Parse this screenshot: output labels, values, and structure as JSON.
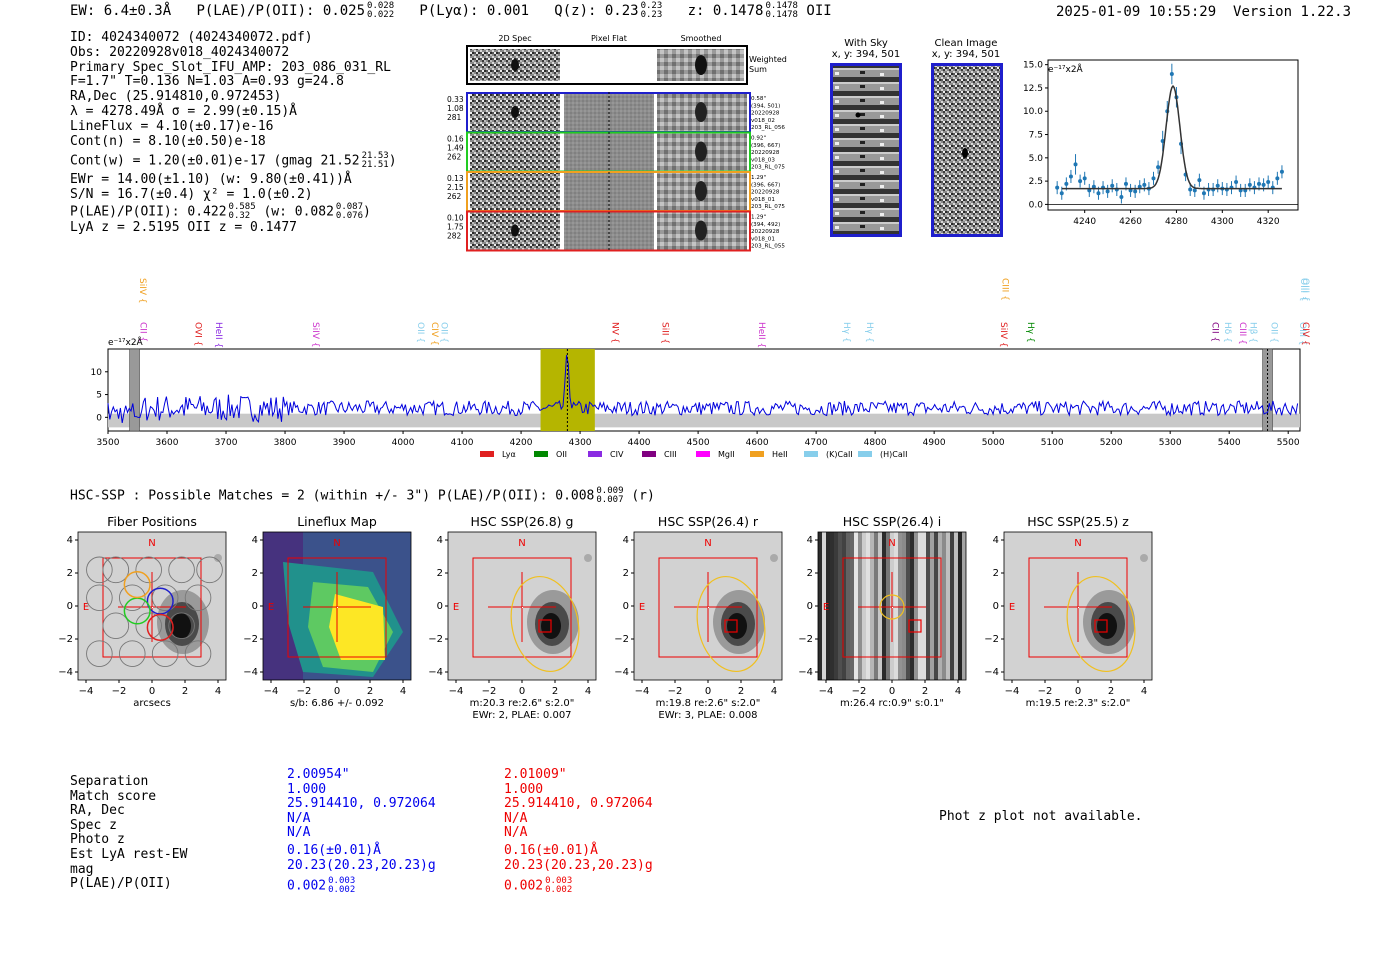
{
  "header": {
    "ew": "EW: 6.4±0.3Å",
    "plae_label": "P(LAE)/P(OII): 0.025",
    "plae_hi": "0.028",
    "plae_lo": "0.022",
    "plya": "P(Lyα): 0.001",
    "qz_label": "Q(z): 0.23",
    "qz_hi": "0.23",
    "qz_lo": "0.23",
    "z_label": "z: 0.1478",
    "z_hi": "0.1478",
    "z_lo": "0.1478",
    "z_line": "OII",
    "timestamp": "2025-01-09 10:55:29",
    "version": "Version 1.22.3"
  },
  "info": {
    "id": "ID: 4024340072 (4024340072.pdf)",
    "obs": "Obs: 20220928v018_4024340072",
    "primary": "Primary Spec_Slot_IFU_AMP: 203_086_031_RL",
    "params": "F=1.7\"  T=0.136  N=1.03  A=0.93  g=24.8",
    "radec": "RA,Dec (25.914810,0.972453)",
    "lambda": "λ = 4278.49Å  σ = 2.99(±0.15)Å",
    "lineflux": "LineFlux = 4.10(±0.17)e-16",
    "contn": "Cont(n) = 8.10(±0.50)e-18",
    "contw": "Cont(w) = 1.20(±0.01)e-17 (gmag 21.52",
    "contw_hi": "21.53",
    "contw_lo": "21.51",
    "contw_end": ")",
    "ewr": "EWr = 14.00(±1.10) (w: 9.80(±0.41))Å",
    "sn": "S/N = 16.7(±0.4)  χ² = 1.0(±0.2)",
    "plae": "P(LAE)/P(OII): 0.422",
    "plae_hi": "0.585",
    "plae_lo": "0.32",
    "plae_w": "(w: 0.082",
    "plae_w_hi": "0.087",
    "plae_w_lo": "0.076",
    "plae_end": ")",
    "lyaz": "LyA z = 2.5195  OII z = 0.1477"
  },
  "cutouts": {
    "col_2d": "2D Spec",
    "col_flat": "Pixel Flat",
    "col_smooth": "Smoothed",
    "weighted_sum": "Weighted Sum",
    "rows": [
      {
        "stats": [
          "0.33",
          "1.08",
          "281"
        ],
        "meta": [
          "0.58\"",
          "(394, 501)",
          "20220928",
          "v018_02",
          "203_RL_056"
        ],
        "color": "#1f1fcc"
      },
      {
        "stats": [
          "0.16",
          "1.49",
          "262"
        ],
        "meta": [
          "0.92\"",
          "(396, 667)",
          "20220928",
          "v018_03",
          "203_RL_075"
        ],
        "color": "#22cc22"
      },
      {
        "stats": [
          "0.13",
          "2.15",
          "262"
        ],
        "meta": [
          "1.29\"",
          "(396, 667)",
          "20220928",
          "v018_01",
          "203_RL_075"
        ],
        "color": "#f0a020"
      },
      {
        "stats": [
          "0.10",
          "1.75",
          "282"
        ],
        "meta": [
          "1.29\"",
          "(394, 492)",
          "20220928",
          "v018_01",
          "203_RL_055"
        ],
        "color": "#e02020"
      }
    ]
  },
  "sky": {
    "with_sky_title": "With Sky",
    "with_sky_xy": "x, y: 394, 501",
    "clean_title": "Clean Image",
    "clean_xy": "x, y: 394, 501"
  },
  "fit_chart": {
    "ylabel": "e⁻¹⁷x2Å",
    "ylim": [
      -0.6,
      15.5
    ],
    "xlim": [
      4224,
      4333
    ],
    "yticks": [
      "0.0",
      "2.5",
      "5.0",
      "7.5",
      "10.0",
      "12.5",
      "15.0"
    ],
    "xticks": [
      "4240",
      "4260",
      "4280",
      "4300",
      "4320"
    ],
    "x": [
      4228,
      4230,
      4232,
      4234,
      4236,
      4238,
      4240,
      4242,
      4244,
      4246,
      4248,
      4250,
      4252,
      4254,
      4256,
      4258,
      4260,
      4262,
      4264,
      4266,
      4268,
      4270,
      4272,
      4274,
      4276,
      4278,
      4280,
      4282,
      4284,
      4286,
      4288,
      4290,
      4292,
      4294,
      4296,
      4298,
      4300,
      4302,
      4304,
      4306,
      4308,
      4310,
      4312,
      4314,
      4316,
      4318,
      4320,
      4322,
      4324,
      4326
    ],
    "y": [
      1.8,
      1.2,
      2.2,
      3.0,
      4.3,
      2.5,
      2.8,
      1.5,
      1.9,
      1.2,
      1.8,
      1.4,
      2.0,
      1.6,
      0.8,
      2.2,
      1.5,
      1.4,
      1.9,
      2.1,
      1.7,
      2.8,
      4.0,
      6.8,
      10.0,
      14.0,
      11.5,
      6.5,
      3.2,
      1.6,
      1.5,
      2.6,
      1.2,
      1.6,
      1.6,
      2.0,
      1.7,
      1.6,
      1.8,
      2.4,
      1.5,
      1.5,
      2.1,
      1.8,
      2.2,
      2.1,
      2.4,
      1.8,
      2.8,
      3.5
    ]
  },
  "spectrum": {
    "ylabel": "e⁻¹⁷x2Å",
    "xlim": [
      3500,
      5520
    ],
    "ylim": [
      -3,
      15
    ],
    "xticks": [
      "3500",
      "3600",
      "3700",
      "3800",
      "3900",
      "4000",
      "4100",
      "4200",
      "4300",
      "4400",
      "4500",
      "4600",
      "4700",
      "4800",
      "4900",
      "5000",
      "5100",
      "5200",
      "5300",
      "5400",
      "5500"
    ],
    "yticks": [
      "0",
      "5",
      "10"
    ],
    "highlight_range": [
      4233,
      4325
    ],
    "line_center": 4278.5,
    "lines": [
      {
        "label": "CII",
        "x": 3550,
        "color": "#cc33cc",
        "row": "low"
      },
      {
        "label": "SiIV",
        "x": 3549,
        "color": "#f0a020",
        "row": "high"
      },
      {
        "label": "OVI",
        "x": 3643,
        "color": "#e02020",
        "row": "low"
      },
      {
        "label": "HeII",
        "x": 3678,
        "color": "#8a2be2",
        "row": "low"
      },
      {
        "label": "SiIV",
        "x": 3842,
        "color": "#cc33cc",
        "row": "low"
      },
      {
        "label": "OII",
        "x": 4020,
        "color": "#87ceeb",
        "row": "low"
      },
      {
        "label": "CIV",
        "x": 4044,
        "color": "#f0a020",
        "row": "low"
      },
      {
        "label": "OII",
        "x": 4060,
        "color": "#87ceeb",
        "row": "low"
      },
      {
        "label": "NV",
        "x": 4350,
        "color": "#e02020",
        "row": "low"
      },
      {
        "label": "SiII",
        "x": 4435,
        "color": "#e02020",
        "row": "low"
      },
      {
        "label": "HeII",
        "x": 4598,
        "color": "#cc33cc",
        "row": "low"
      },
      {
        "label": "Hγ",
        "x": 4742,
        "color": "#87ceeb",
        "row": "low"
      },
      {
        "label": "Hγ",
        "x": 4781,
        "color": "#87ceeb",
        "row": "low"
      },
      {
        "label": "SiIV",
        "x": 5008,
        "color": "#e02020",
        "row": "low"
      },
      {
        "label": "CIII",
        "x": 5011,
        "color": "#f0a020",
        "row": "high"
      },
      {
        "label": "Hγ",
        "x": 5054,
        "color": "#008800",
        "row": "low"
      },
      {
        "label": "CII",
        "x": 5367,
        "color": "#800080",
        "row": "low"
      },
      {
        "label": "Hδ",
        "x": 5388,
        "color": "#87ceeb",
        "row": "low"
      },
      {
        "label": "CIII",
        "x": 5413,
        "color": "#cc33cc",
        "row": "low"
      },
      {
        "label": "Hβ",
        "x": 5431,
        "color": "#87ceeb",
        "row": "low"
      },
      {
        "label": "OII",
        "x": 5467,
        "color": "#87ceeb",
        "row": "low"
      },
      {
        "label": "OIII",
        "x": 5515,
        "color": "#87ceeb",
        "row": "low"
      },
      {
        "label": "OIII",
        "x": 5517,
        "color": "#87ceeb",
        "row": "high"
      },
      {
        "label": "OIII",
        "x": 5563,
        "color": "#87ceeb",
        "row": "high"
      },
      {
        "label": "CIV",
        "x": 5578,
        "color": "#e02020",
        "row": "low"
      }
    ],
    "legend": [
      {
        "label": "Lyα",
        "color": "#e02020"
      },
      {
        "label": "OII",
        "color": "#008800"
      },
      {
        "label": "CIV",
        "color": "#8a2be2"
      },
      {
        "label": "CIII",
        "color": "#800080"
      },
      {
        "label": "MgII",
        "color": "#ff00ff"
      },
      {
        "label": "HeII",
        "color": "#f0a020"
      },
      {
        "label": "(K)CaII",
        "color": "#87ceeb"
      },
      {
        "label": "(H)CaII",
        "color": "#87ceeb"
      }
    ]
  },
  "hsc": {
    "title": "HSC-SSP : Possible Matches = 2 (within +/- 3\")  P(LAE)/P(OII): 0.008",
    "plae_hi": "0.009",
    "plae_lo": "0.007",
    "band": "(r)"
  },
  "panels": [
    {
      "title": "Fiber Positions",
      "xlabel": "arcsecs",
      "sub": ""
    },
    {
      "title": "Lineflux Map",
      "xlabel": "s/b: 6.86 +/- 0.092",
      "sub": ""
    },
    {
      "title": "HSC SSP(26.8) g",
      "xlabel": "m:20.3  re:2.6\"  s:2.0\"",
      "sub": "EWr: 2, PLAE: 0.007"
    },
    {
      "title": "HSC SSP(26.4) r",
      "xlabel": "m:19.8  re:2.6\"  s:2.0\"",
      "sub": "EWr: 3, PLAE: 0.008"
    },
    {
      "title": "HSC SSP(26.4) i",
      "xlabel": "m:26.4  rc:0.9\"  s:0.1\"",
      "sub": ""
    },
    {
      "title": "HSC SSP(25.5) z",
      "xlabel": "m:19.5  re:2.3\"  s:2.0\"",
      "sub": ""
    }
  ],
  "panel_axis": {
    "ticks": [
      "−4",
      "−2",
      "0",
      "2",
      "4"
    ],
    "compass_n": "N",
    "compass_e": "E"
  },
  "matches": {
    "labels": [
      "Separation",
      "Match score",
      "RA, Dec",
      "Spec z",
      "Photo z",
      "Est LyA rest-EW",
      "mag",
      "P(LAE)/P(OII)"
    ],
    "blue": [
      "2.00954\"",
      "1.000",
      "25.914410, 0.972064",
      "N/A",
      "N/A",
      "0.16(±0.01)Å",
      "20.23(20.23,20.23)g",
      "0.002"
    ],
    "blue_hi": "0.003",
    "blue_lo": "0.002",
    "red": [
      "2.01009\"",
      "1.000",
      "25.914410, 0.972064",
      "N/A",
      "N/A",
      "0.16(±0.01)Å",
      "20.23(20.23,20.23)g",
      "0.002"
    ],
    "red_hi": "0.003",
    "red_lo": "0.002",
    "blue_color": "#0000ee",
    "red_color": "#ee0000",
    "photz_note": "Phot z plot not available."
  }
}
